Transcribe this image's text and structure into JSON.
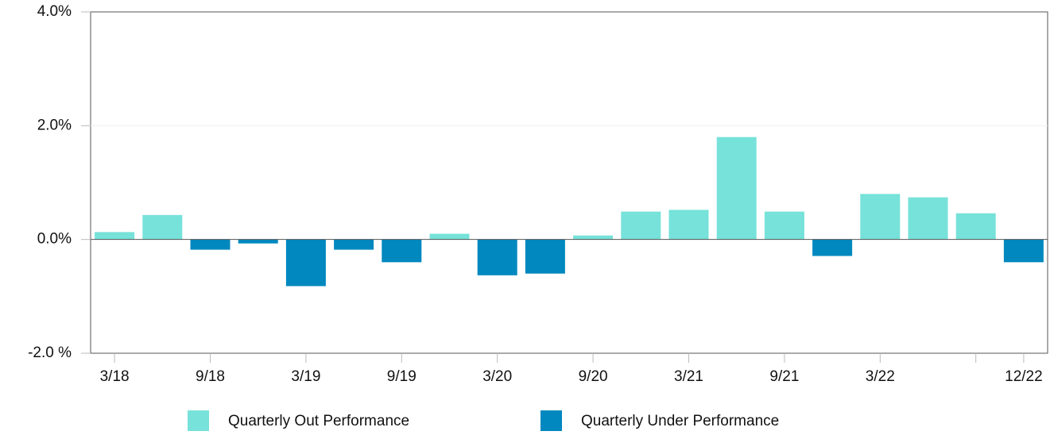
{
  "chart_data": {
    "type": "bar",
    "categories": [
      "3/18",
      null,
      "9/18",
      null,
      "3/19",
      null,
      "9/19",
      null,
      "3/20",
      null,
      "9/20",
      null,
      "3/21",
      null,
      "9/21",
      null,
      "3/22",
      null,
      null,
      "12/22"
    ],
    "series": [
      {
        "name": "Quarterly Out Performance",
        "color": "#76e2d9",
        "values": [
          0.13,
          0.43,
          null,
          null,
          null,
          null,
          null,
          0.1,
          null,
          null,
          0.07,
          0.49,
          0.52,
          1.8,
          0.49,
          null,
          0.8,
          0.74,
          0.46,
          null
        ]
      },
      {
        "name": "Quarterly Under Performance",
        "color": "#0088bf",
        "values": [
          null,
          null,
          -0.18,
          -0.07,
          -0.82,
          -0.18,
          -0.4,
          null,
          -0.63,
          -0.6,
          null,
          null,
          null,
          null,
          null,
          -0.29,
          null,
          null,
          null,
          -0.4
        ]
      }
    ],
    "ylim": [
      -2,
      4
    ],
    "yticks": [
      {
        "value": -2,
        "label": "-2.0 %"
      },
      {
        "value": 0,
        "label": "0.0%"
      },
      {
        "value": 2,
        "label": "2.0%"
      },
      {
        "value": 4,
        "label": "4.0%"
      }
    ],
    "grid": true
  }
}
